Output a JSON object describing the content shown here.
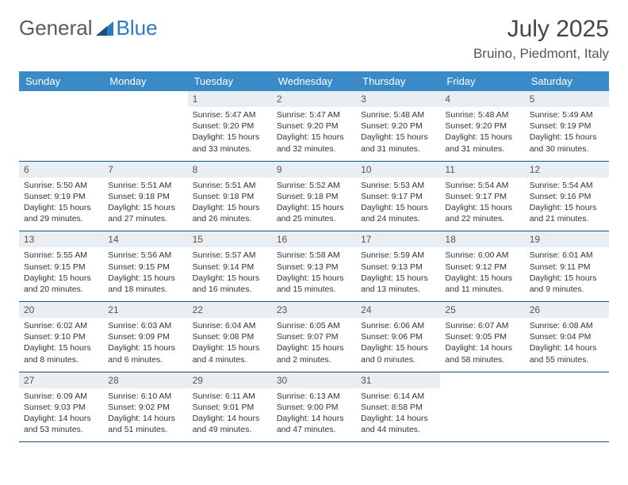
{
  "brand": {
    "word1": "General",
    "word2": "Blue"
  },
  "title": "July 2025",
  "location": "Bruino, Piedmont, Italy",
  "colors": {
    "header_bg": "#3a8ac8",
    "header_text": "#ffffff",
    "daynum_bg": "#e9eef2",
    "row_border": "#1a4f7a",
    "logo_gray": "#5a5a5a",
    "logo_blue": "#2b7bbf"
  },
  "day_headers": [
    "Sunday",
    "Monday",
    "Tuesday",
    "Wednesday",
    "Thursday",
    "Friday",
    "Saturday"
  ],
  "weeks": [
    [
      {
        "empty": true
      },
      {
        "empty": true
      },
      {
        "n": "1",
        "sr": "Sunrise: 5:47 AM",
        "ss": "Sunset: 9:20 PM",
        "dl": "Daylight: 15 hours and 33 minutes."
      },
      {
        "n": "2",
        "sr": "Sunrise: 5:47 AM",
        "ss": "Sunset: 9:20 PM",
        "dl": "Daylight: 15 hours and 32 minutes."
      },
      {
        "n": "3",
        "sr": "Sunrise: 5:48 AM",
        "ss": "Sunset: 9:20 PM",
        "dl": "Daylight: 15 hours and 31 minutes."
      },
      {
        "n": "4",
        "sr": "Sunrise: 5:48 AM",
        "ss": "Sunset: 9:20 PM",
        "dl": "Daylight: 15 hours and 31 minutes."
      },
      {
        "n": "5",
        "sr": "Sunrise: 5:49 AM",
        "ss": "Sunset: 9:19 PM",
        "dl": "Daylight: 15 hours and 30 minutes."
      }
    ],
    [
      {
        "n": "6",
        "sr": "Sunrise: 5:50 AM",
        "ss": "Sunset: 9:19 PM",
        "dl": "Daylight: 15 hours and 29 minutes."
      },
      {
        "n": "7",
        "sr": "Sunrise: 5:51 AM",
        "ss": "Sunset: 9:18 PM",
        "dl": "Daylight: 15 hours and 27 minutes."
      },
      {
        "n": "8",
        "sr": "Sunrise: 5:51 AM",
        "ss": "Sunset: 9:18 PM",
        "dl": "Daylight: 15 hours and 26 minutes."
      },
      {
        "n": "9",
        "sr": "Sunrise: 5:52 AM",
        "ss": "Sunset: 9:18 PM",
        "dl": "Daylight: 15 hours and 25 minutes."
      },
      {
        "n": "10",
        "sr": "Sunrise: 5:53 AM",
        "ss": "Sunset: 9:17 PM",
        "dl": "Daylight: 15 hours and 24 minutes."
      },
      {
        "n": "11",
        "sr": "Sunrise: 5:54 AM",
        "ss": "Sunset: 9:17 PM",
        "dl": "Daylight: 15 hours and 22 minutes."
      },
      {
        "n": "12",
        "sr": "Sunrise: 5:54 AM",
        "ss": "Sunset: 9:16 PM",
        "dl": "Daylight: 15 hours and 21 minutes."
      }
    ],
    [
      {
        "n": "13",
        "sr": "Sunrise: 5:55 AM",
        "ss": "Sunset: 9:15 PM",
        "dl": "Daylight: 15 hours and 20 minutes."
      },
      {
        "n": "14",
        "sr": "Sunrise: 5:56 AM",
        "ss": "Sunset: 9:15 PM",
        "dl": "Daylight: 15 hours and 18 minutes."
      },
      {
        "n": "15",
        "sr": "Sunrise: 5:57 AM",
        "ss": "Sunset: 9:14 PM",
        "dl": "Daylight: 15 hours and 16 minutes."
      },
      {
        "n": "16",
        "sr": "Sunrise: 5:58 AM",
        "ss": "Sunset: 9:13 PM",
        "dl": "Daylight: 15 hours and 15 minutes."
      },
      {
        "n": "17",
        "sr": "Sunrise: 5:59 AM",
        "ss": "Sunset: 9:13 PM",
        "dl": "Daylight: 15 hours and 13 minutes."
      },
      {
        "n": "18",
        "sr": "Sunrise: 6:00 AM",
        "ss": "Sunset: 9:12 PM",
        "dl": "Daylight: 15 hours and 11 minutes."
      },
      {
        "n": "19",
        "sr": "Sunrise: 6:01 AM",
        "ss": "Sunset: 9:11 PM",
        "dl": "Daylight: 15 hours and 9 minutes."
      }
    ],
    [
      {
        "n": "20",
        "sr": "Sunrise: 6:02 AM",
        "ss": "Sunset: 9:10 PM",
        "dl": "Daylight: 15 hours and 8 minutes."
      },
      {
        "n": "21",
        "sr": "Sunrise: 6:03 AM",
        "ss": "Sunset: 9:09 PM",
        "dl": "Daylight: 15 hours and 6 minutes."
      },
      {
        "n": "22",
        "sr": "Sunrise: 6:04 AM",
        "ss": "Sunset: 9:08 PM",
        "dl": "Daylight: 15 hours and 4 minutes."
      },
      {
        "n": "23",
        "sr": "Sunrise: 6:05 AM",
        "ss": "Sunset: 9:07 PM",
        "dl": "Daylight: 15 hours and 2 minutes."
      },
      {
        "n": "24",
        "sr": "Sunrise: 6:06 AM",
        "ss": "Sunset: 9:06 PM",
        "dl": "Daylight: 15 hours and 0 minutes."
      },
      {
        "n": "25",
        "sr": "Sunrise: 6:07 AM",
        "ss": "Sunset: 9:05 PM",
        "dl": "Daylight: 14 hours and 58 minutes."
      },
      {
        "n": "26",
        "sr": "Sunrise: 6:08 AM",
        "ss": "Sunset: 9:04 PM",
        "dl": "Daylight: 14 hours and 55 minutes."
      }
    ],
    [
      {
        "n": "27",
        "sr": "Sunrise: 6:09 AM",
        "ss": "Sunset: 9:03 PM",
        "dl": "Daylight: 14 hours and 53 minutes."
      },
      {
        "n": "28",
        "sr": "Sunrise: 6:10 AM",
        "ss": "Sunset: 9:02 PM",
        "dl": "Daylight: 14 hours and 51 minutes."
      },
      {
        "n": "29",
        "sr": "Sunrise: 6:11 AM",
        "ss": "Sunset: 9:01 PM",
        "dl": "Daylight: 14 hours and 49 minutes."
      },
      {
        "n": "30",
        "sr": "Sunrise: 6:13 AM",
        "ss": "Sunset: 9:00 PM",
        "dl": "Daylight: 14 hours and 47 minutes."
      },
      {
        "n": "31",
        "sr": "Sunrise: 6:14 AM",
        "ss": "Sunset: 8:58 PM",
        "dl": "Daylight: 14 hours and 44 minutes."
      },
      {
        "empty": true
      },
      {
        "empty": true
      }
    ]
  ]
}
